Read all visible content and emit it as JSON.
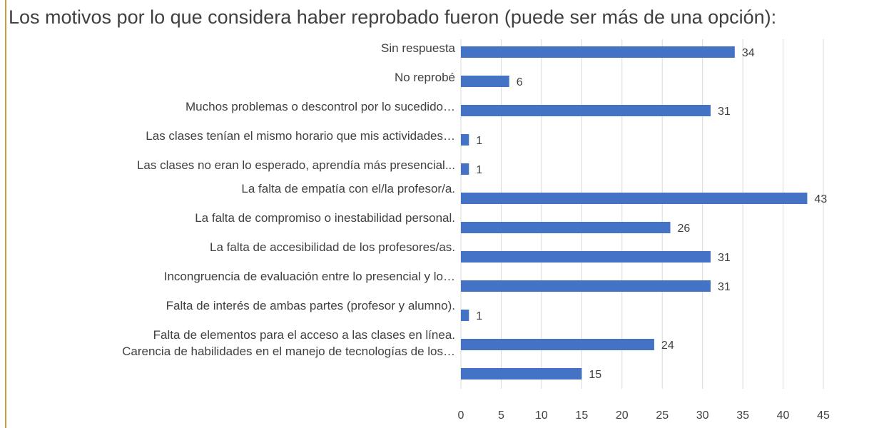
{
  "chart_data": {
    "type": "barh",
    "title": "Los motivos por lo que considera haber reprobado fueron (puede ser más de una opción):",
    "categories": [
      "Sin respuesta",
      "No reprobé",
      "Muchos problemas o descontrol por lo sucedido…",
      "Las clases tenían el mismo horario que mis actividades…",
      "Las clases no eran lo esperado, aprendía más presencial...",
      "La falta de empatía con el/la profesor/a.",
      "La falta de compromiso o inestabilidad personal.",
      "La falta de accesibilidad de los profesores/as.",
      "Incongruencia de evaluación entre lo presencial y lo…",
      "Falta de interés de ambas partes (profesor y alumno).",
      "Falta de elementos para el acceso a las clases en línea.",
      "Carencia de habilidades en el manejo de tecnologías de los…"
    ],
    "values": [
      34,
      6,
      31,
      1,
      1,
      43,
      26,
      31,
      31,
      1,
      24,
      15
    ],
    "color": "#4472c4",
    "xlim": [
      0,
      45
    ],
    "xticks": [
      0,
      5,
      10,
      15,
      20,
      25,
      30,
      35,
      40,
      45
    ],
    "grid": true
  }
}
